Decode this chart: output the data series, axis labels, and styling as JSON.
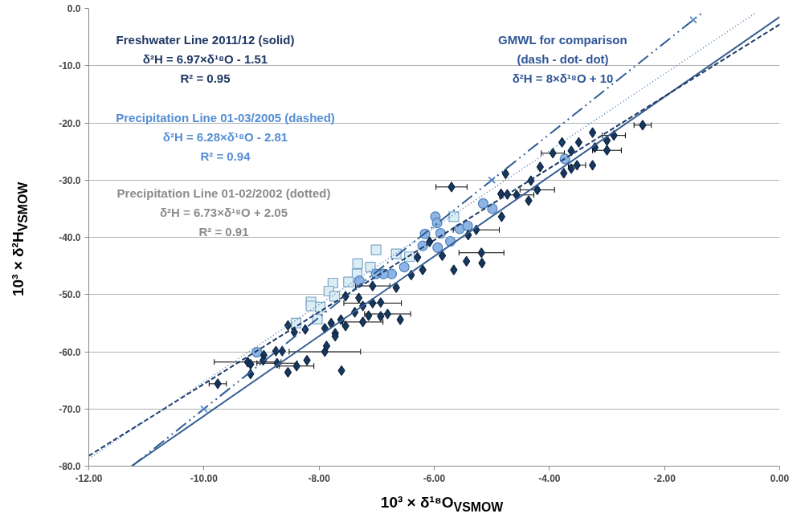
{
  "chart_data": {
    "type": "scatter",
    "xlabel": "10³ × δ¹⁸O$_{VSMOW}$",
    "ylabel": "10³ × δ²H$_{VSMOW}$",
    "xlim": [
      -12,
      0
    ],
    "ylim": [
      -80,
      0
    ],
    "xticks": [
      {
        "value": -12,
        "label": "-12.00"
      },
      {
        "value": -10,
        "label": "-10.00"
      },
      {
        "value": -8,
        "label": "-8.00"
      },
      {
        "value": -6,
        "label": "-6.00"
      },
      {
        "value": -4,
        "label": "-4.00"
      },
      {
        "value": -2,
        "label": "-2.00"
      },
      {
        "value": 0,
        "label": "0.00"
      }
    ],
    "yticks": [
      {
        "value": -80,
        "label": "-80.0"
      },
      {
        "value": -70,
        "label": "-70.0"
      },
      {
        "value": -60,
        "label": "-60.0"
      },
      {
        "value": -50,
        "label": "-50.0"
      },
      {
        "value": -40,
        "label": "-40.0"
      },
      {
        "value": -30,
        "label": "-30.0"
      },
      {
        "value": -20,
        "label": "-20.0"
      },
      {
        "value": -10,
        "label": "-10.0"
      },
      {
        "value": 0,
        "label": "0.0"
      }
    ],
    "grid": "y",
    "annotations": [
      "Freshwater Line 2011/12 (solid)",
      "δ²H = 6.97×δ¹⁸O - 1.51",
      "R² = 0.95",
      "Precipitation Line 01-03/2005 (dashed)",
      "δ²H = 6.28×δ¹⁸O - 2.81",
      "R² = 0.94",
      "Precipitation Line 01-02/2002 (dotted)",
      "δ²H = 6.73×δ¹⁸O + 2.05",
      "R² = 0.91",
      "GMWL for comparison",
      "(dash - dot- dot)",
      "δ²H = 8×δ¹⁸O + 10"
    ],
    "series": [
      {
        "marker": "square",
        "color": "#dbeef4",
        "x": [
          -5.66,
          -7.01,
          -6.66,
          -6.43,
          -7.11,
          -7.33,
          -7.34,
          -7.49,
          -7.76,
          -7.83,
          -7.73,
          -8.14,
          -8.14,
          -7.98,
          -8.03,
          -8.4
        ],
        "values": [
          -36.4,
          -42.2,
          -42.9,
          -43.4,
          -45.2,
          -44.6,
          -46.4,
          -47.8,
          -48.0,
          -49.4,
          -50.3,
          -51.3,
          -52.0,
          -52.2,
          -54.3,
          -55.0
        ]
      },
      {
        "marker": "circle",
        "color": "#8db4e2",
        "x": [
          -5.15,
          -4.99,
          -5.98,
          -5.95,
          -6.16,
          -5.89,
          -5.56,
          -5.42,
          -5.72,
          -6.2,
          -5.94,
          -3.73,
          -6.52,
          -6.74,
          -6.88,
          -7.01,
          -7.3,
          -9.08
        ],
        "values": [
          -34.1,
          -35.0,
          -36.4,
          -37.5,
          -39.4,
          -39.3,
          -38.5,
          -38.0,
          -40.7,
          -41.5,
          -41.8,
          -26.3,
          -45.2,
          -46.4,
          -46.4,
          -46.4,
          -47.6,
          -60.1
        ]
      },
      {
        "marker": "diamond",
        "color": "#17375e",
        "x": [
          -2.38,
          -3.25,
          -2.88,
          -3.0,
          -3.0,
          -3.21,
          -3.78,
          -3.25,
          -3.52,
          -3.62,
          -3.75,
          -3.49,
          -3.62,
          -3.94,
          -4.16,
          -4.76,
          -4.32,
          -5.7,
          -4.84,
          -4.73,
          -4.57,
          -4.21,
          -4.36,
          -4.83,
          -5.27,
          -5.41,
          -5.18,
          -5.44,
          -5.17,
          -5.66,
          -5.86,
          -6.29,
          -6.08,
          -7.07,
          -6.66,
          -6.4,
          -6.2,
          -7.54,
          -7.31,
          -7.07,
          -7.24,
          -6.93,
          -7.38,
          -7.14,
          -6.93,
          -6.59,
          -7.24,
          -7.62,
          -7.79,
          -7.54,
          -8.24,
          -8.54,
          -6.81,
          -8.43,
          -7.9,
          -7.72,
          -7.72,
          -8.75,
          -8.64,
          -8.96,
          -9.24,
          -9.19,
          -8.97,
          -8.73,
          -8.39,
          -8.21,
          -8.54,
          -7.9,
          -7.87,
          -7.61,
          -9.19,
          -9.76
        ],
        "values": [
          -20.4,
          -21.7,
          -22.2,
          -23.1,
          -24.8,
          -24.3,
          -23.4,
          -27.4,
          -27.4,
          -28.0,
          -28.8,
          -23.4,
          -24.9,
          -25.3,
          -27.7,
          -28.9,
          -30.1,
          -31.2,
          -32.4,
          -32.5,
          -32.6,
          -31.7,
          -33.6,
          -36.4,
          -38.7,
          -39.6,
          -42.7,
          -44.2,
          -44.5,
          -45.7,
          -43.2,
          -43.5,
          -40.8,
          -48.5,
          -48.8,
          -46.6,
          -45.7,
          -50.3,
          -50.6,
          -51.5,
          -52.0,
          -51.4,
          -53.1,
          -53.7,
          -53.8,
          -54.4,
          -54.8,
          -54.4,
          -55.0,
          -55.5,
          -56.1,
          -55.4,
          -53.4,
          -56.6,
          -55.9,
          -56.8,
          -57.3,
          -59.9,
          -59.9,
          -60.6,
          -61.8,
          -62.2,
          -61.5,
          -62.0,
          -62.5,
          -61.5,
          -63.6,
          -60.0,
          -59.0,
          -63.3,
          -63.9,
          -65.6
        ],
        "xerrors": [
          0.15,
          null,
          0.2,
          null,
          0.25,
          null,
          null,
          null,
          0.15,
          null,
          null,
          null,
          null,
          0.2,
          null,
          null,
          null,
          0.27,
          null,
          null,
          0.3,
          0.3,
          null,
          null,
          0.4,
          null,
          0.39,
          null,
          null,
          null,
          null,
          null,
          null,
          0.3,
          null,
          null,
          null,
          null,
          null,
          0.5,
          null,
          null,
          null,
          null,
          null,
          null,
          0.35,
          null,
          null,
          null,
          null,
          null,
          0.4,
          null,
          null,
          null,
          null,
          null,
          null,
          null,
          0.58,
          null,
          null,
          0.35,
          0.3,
          null,
          null,
          0.62,
          null,
          null,
          null,
          0.15
        ]
      },
      {
        "type": "line",
        "line_style": "solid",
        "color": "#376092",
        "x": [
          -11.26,
          0
        ],
        "values": [
          -80,
          -1.5
        ]
      },
      {
        "type": "line",
        "line_style": "dashed",
        "color": "#1f3864",
        "x": [
          -12,
          0
        ],
        "values": [
          -78.2,
          -2.8
        ]
      },
      {
        "type": "line",
        "line_style": "dotted",
        "color": "#4f81bd",
        "x": [
          -12,
          -0.42
        ],
        "values": [
          -78.7,
          -0.8
        ]
      },
      {
        "type": "line",
        "line_style": "dashdotdot",
        "color": "#2e5d94",
        "x": [
          -11.25,
          -1.35
        ],
        "values": [
          -80,
          -0.8
        ]
      },
      {
        "type": "scatter",
        "marker": "cross",
        "color": "#4f81bd",
        "x": [
          -10,
          -5,
          -1.5
        ],
        "values": [
          -70,
          -30,
          -2
        ]
      }
    ]
  }
}
